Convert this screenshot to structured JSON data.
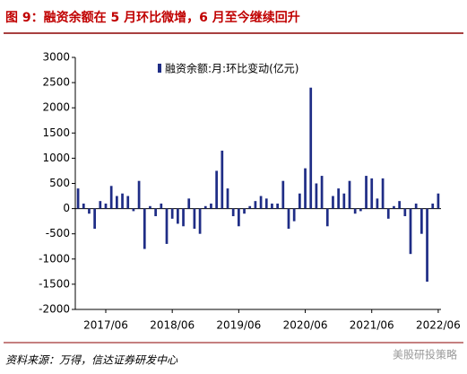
{
  "chart_data": {
    "type": "bar",
    "title": "图 9：融资余额在 5 月环比微增，6 月至今继续回升",
    "source": "资料来源：万得，信达证券研发中心",
    "watermark": "美股研投策略",
    "series": [
      {
        "name": "融资余额:月:环比变动(亿元)",
        "color": "#1f2d86",
        "values": [
          400,
          100,
          -100,
          -400,
          150,
          100,
          450,
          250,
          300,
          250,
          -50,
          550,
          -800,
          50,
          -150,
          100,
          -700,
          -200,
          -300,
          -350,
          200,
          -400,
          -500,
          50,
          100,
          750,
          1150,
          400,
          -150,
          -350,
          -100,
          50,
          150,
          250,
          200,
          100,
          100,
          550,
          -400,
          -250,
          300,
          800,
          2400,
          500,
          650,
          -350,
          250,
          400,
          300,
          550,
          -100,
          -50,
          650,
          600,
          200,
          600,
          -200,
          50,
          150,
          -150,
          -900,
          100,
          -500,
          -1450,
          100,
          300
        ]
      }
    ],
    "categories": [
      null,
      null,
      null,
      null,
      null,
      "2017/06",
      null,
      null,
      null,
      null,
      null,
      null,
      null,
      null,
      null,
      null,
      null,
      "2018/06",
      null,
      null,
      null,
      null,
      null,
      null,
      null,
      null,
      null,
      null,
      null,
      "2019/06",
      null,
      null,
      null,
      null,
      null,
      null,
      null,
      null,
      null,
      null,
      null,
      "2020/06",
      null,
      null,
      null,
      null,
      null,
      null,
      null,
      null,
      null,
      null,
      null,
      "2021/06",
      null,
      null,
      null,
      null,
      null,
      null,
      null,
      null,
      null,
      null,
      null,
      "2022/06"
    ],
    "ylim": [
      -2000,
      3000
    ],
    "yticks": [
      -2000,
      -1500,
      -1000,
      -500,
      0,
      500,
      1000,
      1500,
      2000,
      2500,
      3000
    ],
    "grid": false
  }
}
